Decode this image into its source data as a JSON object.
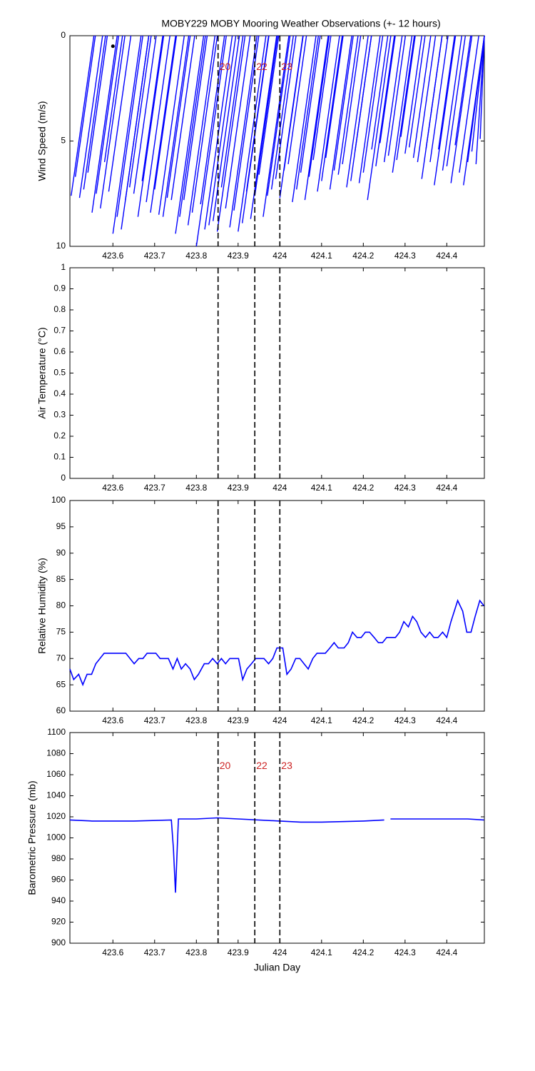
{
  "chart_data": [
    {
      "type": "stick",
      "title": "MOBY229 MOBY Mooring Weather Observations (+- 12 hours)",
      "ylabel": "Wind Speed (m/s)",
      "color": "#0000ff",
      "xlim": [
        423.497,
        424.49
      ],
      "xticks": [
        423.6,
        423.7,
        423.8,
        423.9,
        424,
        424.1,
        424.2,
        424.3,
        424.4
      ],
      "ylim": [
        0,
        10
      ],
      "y_inverted": true,
      "yticks": [
        0,
        5,
        10
      ],
      "x": [
        423.5,
        423.51,
        423.52,
        423.53,
        423.54,
        423.55,
        423.56,
        423.57,
        423.58,
        423.59,
        423.6,
        423.61,
        423.62,
        423.63,
        423.64,
        423.65,
        423.66,
        423.67,
        423.68,
        423.69,
        423.7,
        423.71,
        423.72,
        423.73,
        423.74,
        423.75,
        423.76,
        423.77,
        423.78,
        423.79,
        423.8,
        423.81,
        423.82,
        423.83,
        423.84,
        423.85,
        423.86,
        423.87,
        423.88,
        423.89,
        423.9,
        423.91,
        423.92,
        423.93,
        423.94,
        423.95,
        423.96,
        423.97,
        423.98,
        423.99,
        424.0,
        424.01,
        424.02,
        424.03,
        424.04,
        424.05,
        424.06,
        424.07,
        424.08,
        424.09,
        424.1,
        424.11,
        424.12,
        424.13,
        424.14,
        424.15,
        424.16,
        424.17,
        424.18,
        424.19,
        424.2,
        424.21,
        424.22,
        424.23,
        424.24,
        424.25,
        424.26,
        424.27,
        424.28,
        424.29,
        424.3,
        424.31,
        424.32,
        424.33,
        424.34,
        424.35,
        424.36,
        424.37,
        424.38,
        424.39,
        424.4,
        424.41,
        424.42,
        424.43,
        424.44,
        424.45,
        424.46,
        424.47,
        424.48
      ],
      "values": [
        7.6,
        6.7,
        7.7,
        7.3,
        6.5,
        8.4,
        7.5,
        8.2,
        6.0,
        7.4,
        9.4,
        8.6,
        9.2,
        7.8,
        7.2,
        7.5,
        8.6,
        6.9,
        7.9,
        8.4,
        7.3,
        8.5,
        8.6,
        7.7,
        7.8,
        9.4,
        8.6,
        7.8,
        9.0,
        8.4,
        10.0,
        8.0,
        9.2,
        9.0,
        8.8,
        9.3,
        7.2,
        8.2,
        9.1,
        8.3,
        9.3,
        8.9,
        7.4,
        8.7,
        7.6,
        6.6,
        8.6,
        7.6,
        7.3,
        6.8,
        7.7,
        6.4,
        6.1,
        7.9,
        7.3,
        6.5,
        7.8,
        6.7,
        5.9,
        7.4,
        6.9,
        5.8,
        7.3,
        6.4,
        6.6,
        6.1,
        7.2,
        6.9,
        5.5,
        7.0,
        6.5,
        7.8,
        5.4,
        6.2,
        5.1,
        6.0,
        5.7,
        6.5,
        5.9,
        4.8,
        5.6,
        5.3,
        5.8,
        6.0,
        6.8,
        5.4,
        6.0,
        7.1,
        5.4,
        6.4,
        6.2,
        7.0,
        5.2,
        6.5,
        7.1,
        6.0,
        5.5,
        6.1,
        4.9
      ],
      "marker": {
        "x": 423.6,
        "y": 0.5
      },
      "vlines": [
        423.852,
        423.94,
        424.0
      ],
      "vline_labels": [
        "20",
        "22",
        "23"
      ],
      "vline_label_y": 1.5
    },
    {
      "type": "line",
      "ylabel": "Air Temperature (°C)",
      "color": "#0000ff",
      "xlim": [
        423.497,
        424.49
      ],
      "xticks": [
        423.6,
        423.7,
        423.8,
        423.9,
        424,
        424.1,
        424.2,
        424.3,
        424.4
      ],
      "ylim": [
        0,
        1
      ],
      "yticks": [
        0,
        0.1,
        0.2,
        0.3,
        0.4,
        0.5,
        0.6,
        0.7,
        0.8,
        0.9,
        1
      ],
      "vlines": [
        423.852,
        423.94,
        424.0
      ]
    },
    {
      "type": "line",
      "ylabel": "Relative Humidity (%)",
      "color": "#0000ff",
      "xlim": [
        423.497,
        424.49
      ],
      "xticks": [
        423.6,
        423.7,
        423.8,
        423.9,
        424,
        424.1,
        424.2,
        424.3,
        424.4
      ],
      "ylim": [
        60,
        100
      ],
      "yticks": [
        60,
        65,
        70,
        75,
        80,
        85,
        90,
        95,
        100
      ],
      "x": [
        423.497,
        423.506,
        423.518,
        423.528,
        423.538,
        423.549,
        423.559,
        423.579,
        423.631,
        423.651,
        423.662,
        423.672,
        423.682,
        423.703,
        423.713,
        423.733,
        423.744,
        423.754,
        423.764,
        423.774,
        423.785,
        423.795,
        423.805,
        423.819,
        423.829,
        423.839,
        423.85,
        423.86,
        423.87,
        423.88,
        423.901,
        423.911,
        423.921,
        423.932,
        423.942,
        423.962,
        423.973,
        423.983,
        423.993,
        424.007,
        424.017,
        424.027,
        424.038,
        424.048,
        424.058,
        424.068,
        424.079,
        424.089,
        424.109,
        424.12,
        424.13,
        424.14,
        424.154,
        424.164,
        424.174,
        424.185,
        424.195,
        424.205,
        424.215,
        424.226,
        424.236,
        424.246,
        424.256,
        424.277,
        424.287,
        424.297,
        424.308,
        424.318,
        424.328,
        424.338,
        424.349,
        424.359,
        424.369,
        424.379,
        424.39,
        424.4,
        424.41,
        424.426,
        424.438,
        424.448,
        424.458,
        424.468,
        424.479,
        424.489
      ],
      "values": [
        68,
        66,
        67,
        65,
        67,
        67,
        69,
        71,
        71,
        69,
        70,
        70,
        71,
        71,
        70,
        70,
        68,
        70,
        68,
        69,
        68,
        66,
        67,
        69,
        69,
        70,
        69,
        70,
        69,
        70,
        70,
        66,
        68,
        69,
        70,
        70,
        69,
        70,
        72,
        72,
        67,
        68,
        70,
        70,
        69,
        68,
        70,
        71,
        71,
        72,
        73,
        72,
        72,
        73,
        75,
        74,
        74,
        75,
        75,
        74,
        73,
        73,
        74,
        74,
        75,
        77,
        76,
        78,
        77,
        75,
        74,
        75,
        74,
        74,
        75,
        74,
        77,
        81,
        79,
        75,
        75,
        78,
        81,
        80
      ],
      "vlines": [
        423.852,
        423.94,
        424.0
      ]
    },
    {
      "type": "line",
      "ylabel": "Barometric Pressure (mb)",
      "xlabel": "Julian Day",
      "color": "#0000ff",
      "xlim": [
        423.497,
        424.49
      ],
      "xticks": [
        423.6,
        423.7,
        423.8,
        423.9,
        424,
        424.1,
        424.2,
        424.3,
        424.4
      ],
      "ylim": [
        900,
        1100
      ],
      "yticks": [
        900,
        920,
        940,
        960,
        980,
        1000,
        1020,
        1040,
        1060,
        1080,
        1100
      ],
      "x": [
        423.497,
        423.55,
        423.65,
        423.74,
        423.745,
        423.75,
        423.757,
        423.8,
        423.85,
        423.9,
        424.0,
        424.05,
        424.1,
        424.2,
        424.25,
        424.258,
        424.265,
        424.35,
        424.45,
        424.489
      ],
      "values": [
        1017,
        1016,
        1016,
        1017,
        990,
        948,
        1018,
        1018,
        1019,
        1018,
        1016,
        1015,
        1015,
        1016,
        1017,
        null,
        1018,
        1018,
        1018,
        1017
      ],
      "vlines": [
        423.852,
        423.94,
        424.0
      ],
      "vline_labels": [
        "20",
        "22",
        "23"
      ],
      "vline_label_y": 1068
    }
  ]
}
